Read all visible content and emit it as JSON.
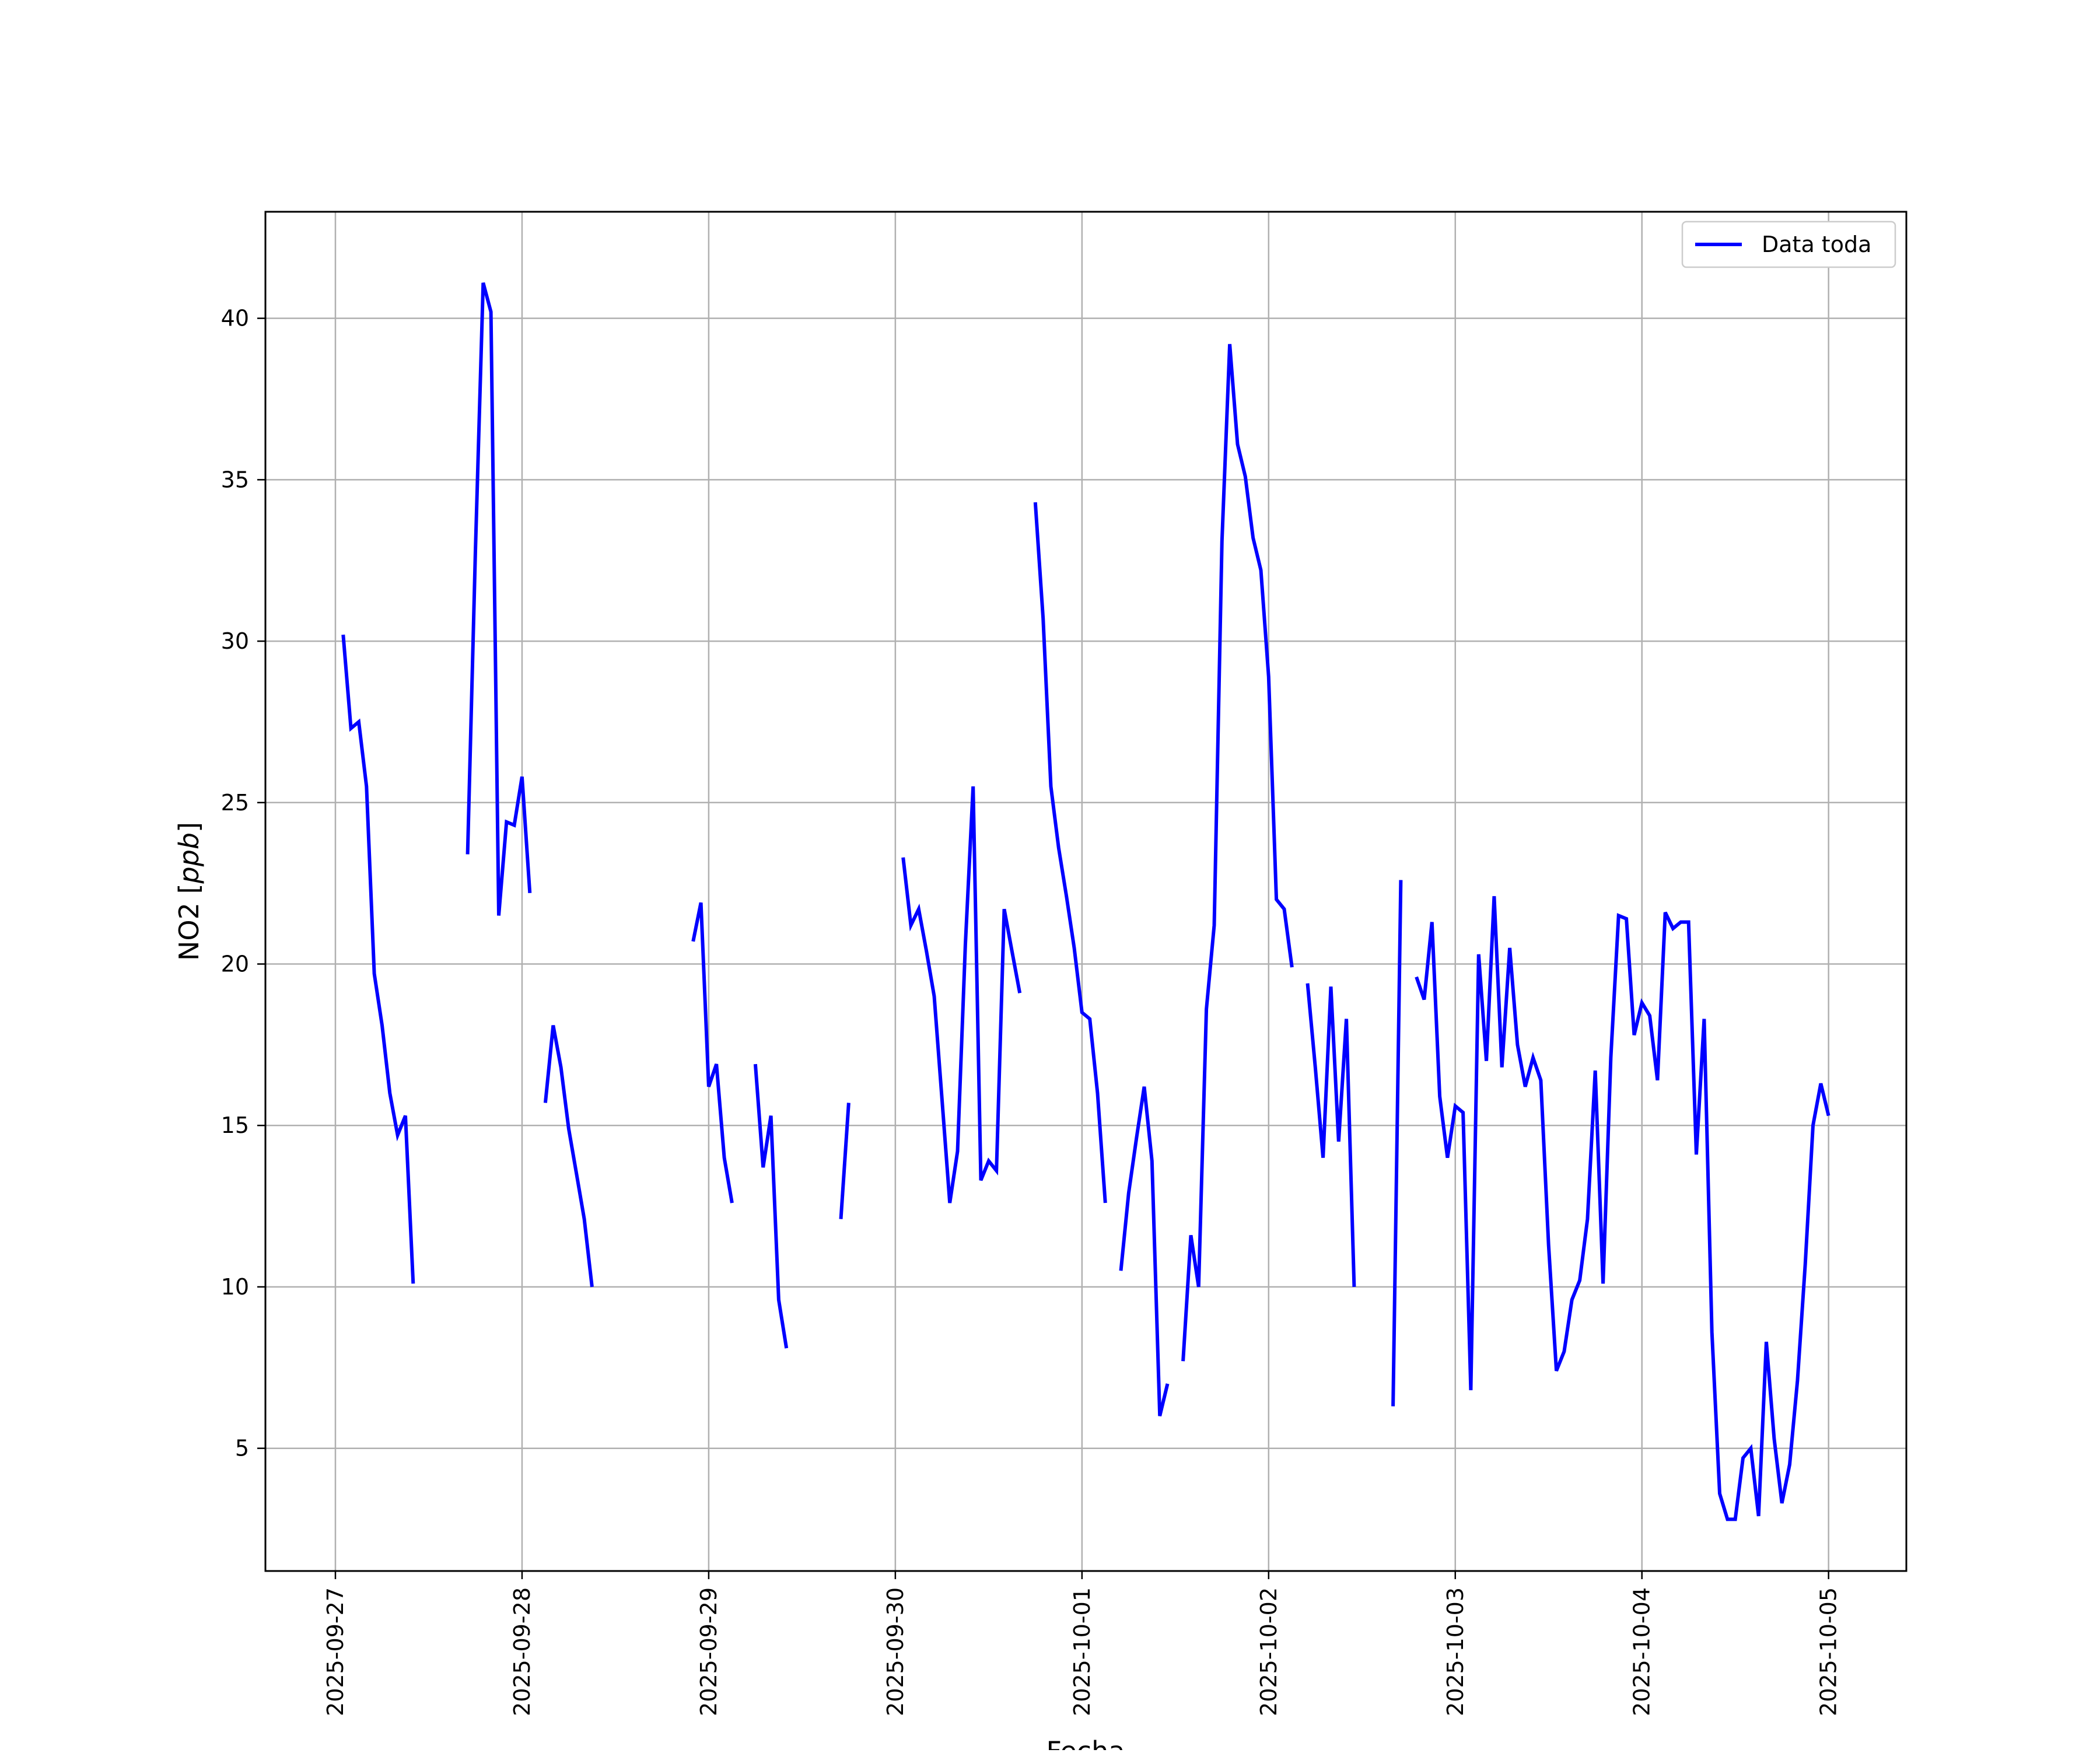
{
  "chart_data": {
    "type": "line",
    "title": "",
    "xlabel": "Fecha",
    "ylabel_prefix": "NO2 [",
    "ylabel_unit": "ppb",
    "ylabel_suffix": "]",
    "x_ticks": [
      "2025-09-27",
      "2025-09-28",
      "2025-09-29",
      "2025-09-30",
      "2025-10-01",
      "2025-10-02",
      "2025-10-03",
      "2025-10-04",
      "2025-10-05"
    ],
    "y_ticks": [
      "5",
      "10",
      "15",
      "20",
      "25",
      "30",
      "35",
      "40"
    ],
    "xlim": [
      "2025-09-26T15:00",
      "2025-10-05T10:00"
    ],
    "ylim": [
      1.2,
      43.3
    ],
    "grid": true,
    "legend_position": "upper right",
    "series": [
      {
        "name": "Data toda",
        "color": "#0000ff",
        "segments": [
          [
            [
              "2025-09-27T01:00",
              30.2
            ],
            [
              "2025-09-27T02:00",
              27.3
            ],
            [
              "2025-09-27T03:00",
              27.5
            ],
            [
              "2025-09-27T04:00",
              25.5
            ],
            [
              "2025-09-27T05:00",
              19.7
            ],
            [
              "2025-09-27T06:00",
              18.1
            ],
            [
              "2025-09-27T07:00",
              16.0
            ],
            [
              "2025-09-27T08:00",
              14.7
            ],
            [
              "2025-09-27T09:00",
              15.3
            ],
            [
              "2025-09-27T10:00",
              10.1
            ]
          ],
          [
            [
              "2025-09-27T17:00",
              23.4
            ],
            [
              "2025-09-27T18:00",
              32.8
            ],
            [
              "2025-09-27T19:00",
              41.1
            ],
            [
              "2025-09-27T20:00",
              40.2
            ],
            [
              "2025-09-27T21:00",
              21.5
            ],
            [
              "2025-09-27T22:00",
              24.4
            ],
            [
              "2025-09-27T23:00",
              24.3
            ],
            [
              "2025-09-28T00:00",
              25.8
            ],
            [
              "2025-09-28T01:00",
              22.2
            ]
          ],
          [
            [
              "2025-09-28T03:00",
              15.7
            ],
            [
              "2025-09-28T04:00",
              18.1
            ],
            [
              "2025-09-28T05:00",
              16.8
            ],
            [
              "2025-09-28T06:00",
              14.9
            ],
            [
              "2025-09-28T07:00",
              13.5
            ],
            [
              "2025-09-28T08:00",
              12.1
            ],
            [
              "2025-09-28T09:00",
              10.0
            ]
          ],
          [
            [
              "2025-09-28T22:00",
              20.7
            ],
            [
              "2025-09-28T23:00",
              21.9
            ],
            [
              "2025-09-29T00:00",
              16.2
            ],
            [
              "2025-09-29T01:00",
              16.9
            ],
            [
              "2025-09-29T02:00",
              14.0
            ],
            [
              "2025-09-29T03:00",
              12.6
            ]
          ],
          [
            [
              "2025-09-29T06:00",
              16.9
            ],
            [
              "2025-09-29T07:00",
              13.7
            ],
            [
              "2025-09-29T08:00",
              15.3
            ],
            [
              "2025-09-29T09:00",
              9.6
            ],
            [
              "2025-09-29T10:00",
              8.1
            ]
          ],
          [
            [
              "2025-09-29T17:00",
              12.1
            ],
            [
              "2025-09-29T18:00",
              15.7
            ]
          ],
          [
            [
              "2025-09-30T01:00",
              23.3
            ],
            [
              "2025-09-30T02:00",
              21.2
            ],
            [
              "2025-09-30T03:00",
              21.7
            ],
            [
              "2025-09-30T04:00",
              20.4
            ],
            [
              "2025-09-30T05:00",
              19.0
            ],
            [
              "2025-09-30T06:00",
              15.8
            ],
            [
              "2025-09-30T07:00",
              12.6
            ],
            [
              "2025-09-30T08:00",
              14.2
            ],
            [
              "2025-09-30T09:00",
              20.6
            ],
            [
              "2025-09-30T10:00",
              25.5
            ],
            [
              "2025-09-30T11:00",
              13.3
            ],
            [
              "2025-09-30T12:00",
              13.9
            ],
            [
              "2025-09-30T13:00",
              13.6
            ],
            [
              "2025-09-30T14:00",
              21.7
            ],
            [
              "2025-09-30T15:00",
              20.4
            ],
            [
              "2025-09-30T16:00",
              19.1
            ]
          ],
          [
            [
              "2025-09-30T18:00",
              34.3
            ],
            [
              "2025-09-30T19:00",
              30.7
            ],
            [
              "2025-09-30T20:00",
              25.5
            ],
            [
              "2025-09-30T21:00",
              23.6
            ],
            [
              "2025-09-30T22:00",
              22.1
            ],
            [
              "2025-09-30T23:00",
              20.5
            ],
            [
              "2025-10-01T00:00",
              18.5
            ],
            [
              "2025-10-01T01:00",
              18.3
            ],
            [
              "2025-10-01T02:00",
              16.0
            ],
            [
              "2025-10-01T03:00",
              12.6
            ]
          ],
          [
            [
              "2025-10-01T05:00",
              10.5
            ],
            [
              "2025-10-01T06:00",
              12.9
            ],
            [
              "2025-10-01T07:00",
              14.6
            ],
            [
              "2025-10-01T08:00",
              16.2
            ],
            [
              "2025-10-01T09:00",
              13.9
            ],
            [
              "2025-10-01T10:00",
              6.0
            ],
            [
              "2025-10-01T11:00",
              7.0
            ]
          ],
          [
            [
              "2025-10-01T13:00",
              7.7
            ],
            [
              "2025-10-01T14:00",
              11.6
            ],
            [
              "2025-10-01T15:00",
              10.0
            ],
            [
              "2025-10-01T16:00",
              18.6
            ],
            [
              "2025-10-01T17:00",
              21.2
            ],
            [
              "2025-10-01T18:00",
              33.1
            ],
            [
              "2025-10-01T19:00",
              39.2
            ],
            [
              "2025-10-01T20:00",
              36.1
            ],
            [
              "2025-10-01T21:00",
              35.1
            ],
            [
              "2025-10-01T22:00",
              33.2
            ],
            [
              "2025-10-01T23:00",
              32.2
            ],
            [
              "2025-10-02T00:00",
              28.9
            ],
            [
              "2025-10-02T01:00",
              22.0
            ],
            [
              "2025-10-02T02:00",
              21.7
            ],
            [
              "2025-10-02T03:00",
              19.9
            ]
          ],
          [
            [
              "2025-10-02T05:00",
              19.4
            ],
            [
              "2025-10-02T06:00",
              16.8
            ],
            [
              "2025-10-02T07:00",
              14.0
            ],
            [
              "2025-10-02T08:00",
              19.3
            ],
            [
              "2025-10-02T09:00",
              14.5
            ],
            [
              "2025-10-02T10:00",
              18.3
            ],
            [
              "2025-10-02T11:00",
              10.0
            ]
          ],
          [
            [
              "2025-10-02T16:00",
              6.3
            ],
            [
              "2025-10-02T17:00",
              22.6
            ]
          ],
          [
            [
              "2025-10-02T19:00",
              19.6
            ],
            [
              "2025-10-02T20:00",
              18.9
            ],
            [
              "2025-10-02T21:00",
              21.3
            ],
            [
              "2025-10-02T22:00",
              15.9
            ],
            [
              "2025-10-02T23:00",
              14.0
            ],
            [
              "2025-10-03T00:00",
              15.6
            ],
            [
              "2025-10-03T01:00",
              15.4
            ],
            [
              "2025-10-03T02:00",
              6.8
            ],
            [
              "2025-10-03T03:00",
              20.3
            ],
            [
              "2025-10-03T04:00",
              17.0
            ],
            [
              "2025-10-03T05:00",
              22.1
            ],
            [
              "2025-10-03T06:00",
              16.8
            ],
            [
              "2025-10-03T07:00",
              20.5
            ],
            [
              "2025-10-03T08:00",
              17.5
            ],
            [
              "2025-10-03T09:00",
              16.2
            ],
            [
              "2025-10-03T10:00",
              17.1
            ],
            [
              "2025-10-03T11:00",
              16.4
            ],
            [
              "2025-10-03T12:00",
              11.3
            ],
            [
              "2025-10-03T13:00",
              7.4
            ],
            [
              "2025-10-03T14:00",
              8.0
            ],
            [
              "2025-10-03T15:00",
              9.6
            ],
            [
              "2025-10-03T16:00",
              10.2
            ],
            [
              "2025-10-03T17:00",
              12.1
            ],
            [
              "2025-10-03T18:00",
              16.7
            ],
            [
              "2025-10-03T19:00",
              10.1
            ],
            [
              "2025-10-03T20:00",
              17.1
            ],
            [
              "2025-10-03T21:00",
              21.5
            ],
            [
              "2025-10-03T22:00",
              21.4
            ],
            [
              "2025-10-03T23:00",
              17.8
            ],
            [
              "2025-10-04T00:00",
              18.8
            ],
            [
              "2025-10-04T01:00",
              18.4
            ],
            [
              "2025-10-04T02:00",
              16.4
            ],
            [
              "2025-10-04T03:00",
              21.6
            ],
            [
              "2025-10-04T04:00",
              21.1
            ],
            [
              "2025-10-04T05:00",
              21.3
            ],
            [
              "2025-10-04T06:00",
              21.3
            ],
            [
              "2025-10-04T07:00",
              14.1
            ],
            [
              "2025-10-04T08:00",
              18.3
            ],
            [
              "2025-10-04T09:00",
              8.6
            ],
            [
              "2025-10-04T10:00",
              3.6
            ],
            [
              "2025-10-04T11:00",
              2.8
            ],
            [
              "2025-10-04T12:00",
              2.8
            ],
            [
              "2025-10-04T13:00",
              4.7
            ],
            [
              "2025-10-04T14:00",
              5.0
            ],
            [
              "2025-10-04T15:00",
              2.9
            ],
            [
              "2025-10-04T16:00",
              8.3
            ],
            [
              "2025-10-04T17:00",
              5.3
            ],
            [
              "2025-10-04T18:00",
              3.3
            ],
            [
              "2025-10-04T19:00",
              4.5
            ],
            [
              "2025-10-04T20:00",
              7.1
            ],
            [
              "2025-10-04T21:00",
              10.7
            ],
            [
              "2025-10-04T22:00",
              15.0
            ],
            [
              "2025-10-04T23:00",
              16.3
            ],
            [
              "2025-10-05T00:00",
              15.3
            ]
          ]
        ]
      }
    ]
  }
}
